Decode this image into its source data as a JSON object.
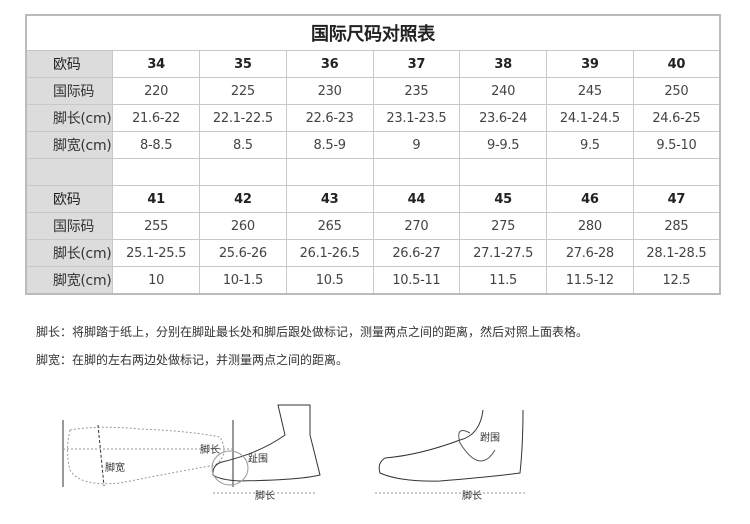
{
  "title": "国际尺码对照表",
  "row_labels": {
    "eu": "欧码",
    "intl": "国际码",
    "length": "脚长(cm)",
    "width": "脚宽(cm)"
  },
  "groups": [
    {
      "eu": [
        "34",
        "35",
        "36",
        "37",
        "38",
        "39",
        "40"
      ],
      "intl": [
        "220",
        "225",
        "230",
        "235",
        "240",
        "245",
        "250"
      ],
      "length": [
        "21.6-22",
        "22.1-22.5",
        "22.6-23",
        "23.1-23.5",
        "23.6-24",
        "24.1-24.5",
        "24.6-25"
      ],
      "width": [
        "8-8.5",
        "8.5",
        "8.5-9",
        "9",
        "9-9.5",
        "9.5",
        "9.5-10"
      ]
    },
    {
      "eu": [
        "41",
        "42",
        "43",
        "44",
        "45",
        "46",
        "47"
      ],
      "intl": [
        "255",
        "260",
        "265",
        "270",
        "275",
        "280",
        "285"
      ],
      "length": [
        "25.1-25.5",
        "25.6-26",
        "26.1-26.5",
        "26.6-27",
        "27.1-27.5",
        "27.6-28",
        "28.1-28.5"
      ],
      "width": [
        "10",
        "10-1.5",
        "10.5",
        "10.5-11",
        "11.5",
        "11.5-12",
        "12.5"
      ]
    }
  ],
  "notes": [
    "脚长：将脚踏于纸上，分别在脚趾最长处和脚后跟处做标记，测量两点之间的距离，然后对照上面表格。",
    "脚宽：在脚的左右两边处做标记，并测量两点之间的距离。"
  ],
  "diagrams": {
    "length": "脚长",
    "width": "脚宽",
    "toe_girth": "趾围",
    "instep_girth": "跗围"
  }
}
